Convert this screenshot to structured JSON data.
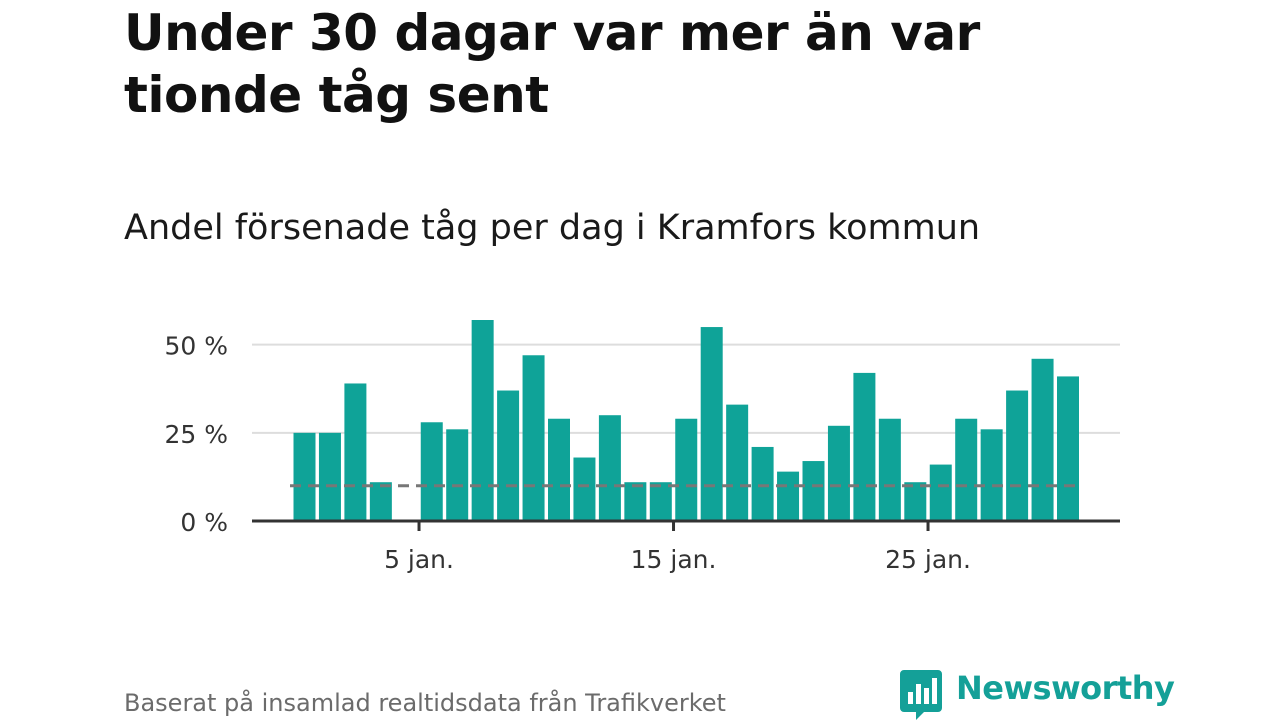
{
  "title": "Under 30 dagar var mer än var tionde tåg sent",
  "subtitle": "Andel försenade tåg per dag i Kramfors kommun",
  "source": "Baserat på insamlad realtidsdata från Trafikverket",
  "brand": {
    "name": "Newsworthy",
    "color": "#14a098"
  },
  "colors": {
    "bar": "#0fa398",
    "reference_line": "#777777",
    "grid": "#dddddd",
    "axis": "#333333"
  },
  "chart_data": {
    "type": "bar",
    "x": [
      1,
      2,
      3,
      4,
      5,
      6,
      7,
      8,
      9,
      10,
      11,
      12,
      13,
      14,
      15,
      16,
      17,
      18,
      19,
      20,
      21,
      22,
      23,
      24,
      25,
      26,
      27,
      28,
      29,
      30,
      31
    ],
    "values": [
      25,
      25,
      39,
      11,
      null,
      28,
      26,
      57,
      37,
      47,
      29,
      18,
      30,
      11,
      11,
      29,
      55,
      33,
      21,
      14,
      17,
      27,
      42,
      29,
      11,
      16,
      29,
      26,
      37,
      46,
      41
    ],
    "reference_line": 10,
    "ylim": [
      0,
      57
    ],
    "yticks": [
      {
        "value": 0,
        "label": "0 %"
      },
      {
        "value": 25,
        "label": "25 %"
      },
      {
        "value": 50,
        "label": "50 %"
      }
    ],
    "xticks": [
      {
        "value": 5,
        "label": "5 jan."
      },
      {
        "value": 15,
        "label": "15 jan."
      },
      {
        "value": 25,
        "label": "25 jan."
      }
    ],
    "grid": true,
    "legend": "none"
  }
}
